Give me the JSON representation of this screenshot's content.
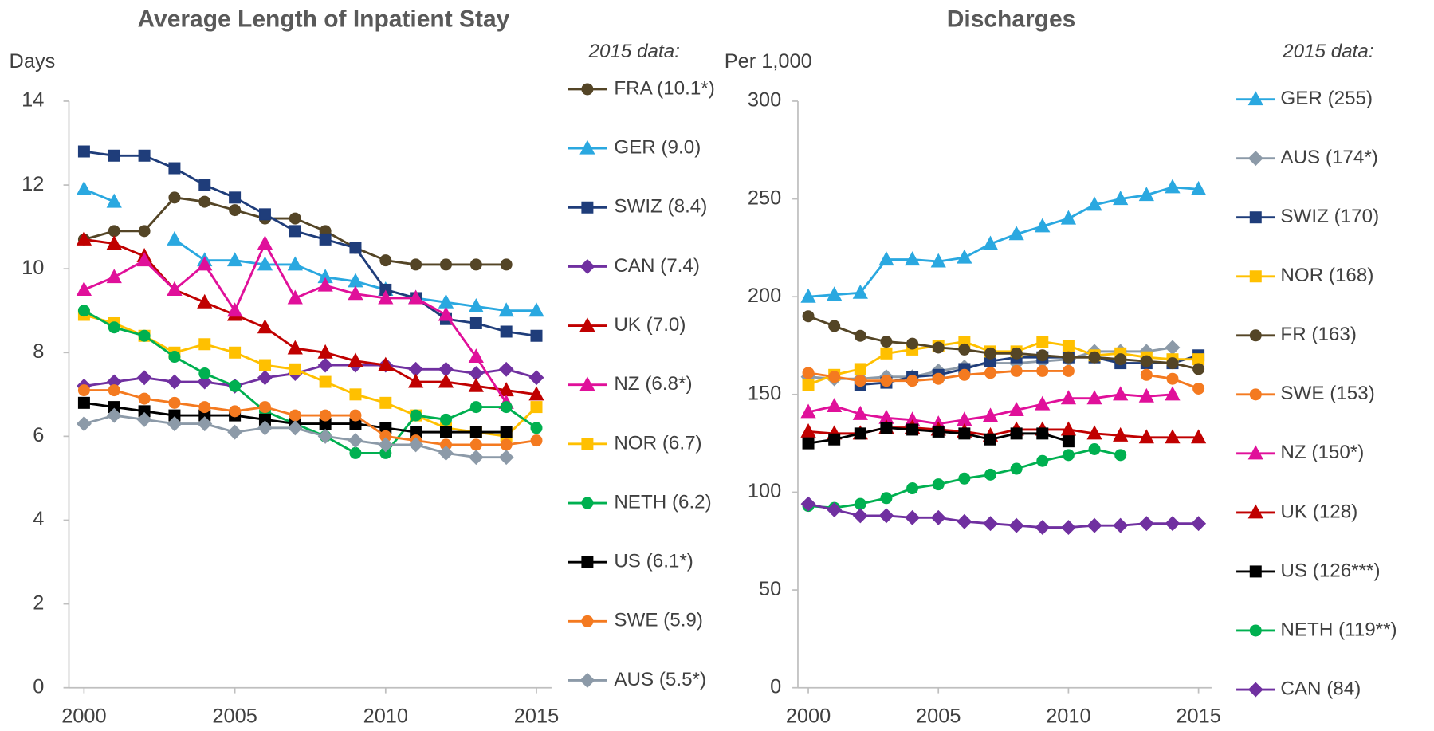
{
  "chart_data": [
    {
      "type": "line",
      "title": "Average Length of Inpatient Stay",
      "y_label": "Days",
      "legend_title": "2015 data:",
      "x": [
        2000,
        2001,
        2002,
        2003,
        2004,
        2005,
        2006,
        2007,
        2008,
        2009,
        2010,
        2011,
        2012,
        2013,
        2014,
        2015
      ],
      "xlim": [
        1999.5,
        2015.5
      ],
      "xticks": [
        2000,
        2005,
        2010,
        2015
      ],
      "ylim": [
        0,
        14
      ],
      "yticks": [
        0,
        2,
        4,
        6,
        8,
        10,
        12,
        14
      ],
      "grid": false,
      "series": [
        {
          "name": "FRA (10.1*)",
          "color": "#544526",
          "marker": "circle",
          "values": [
            10.7,
            10.9,
            10.9,
            11.7,
            11.6,
            11.4,
            11.2,
            11.2,
            10.9,
            10.5,
            10.2,
            10.1,
            10.1,
            10.1,
            10.1,
            null
          ]
        },
        {
          "name": "GER (9.0)",
          "color": "#2aa8e0",
          "marker": "triangle",
          "values": [
            11.9,
            11.6,
            null,
            10.7,
            10.2,
            10.2,
            10.1,
            10.1,
            9.8,
            9.7,
            9.5,
            9.3,
            9.2,
            9.1,
            9.0,
            9.0
          ]
        },
        {
          "name": "SWIZ (8.4)",
          "color": "#1f3d7a",
          "marker": "square",
          "values": [
            12.8,
            12.7,
            12.7,
            12.4,
            12.0,
            11.7,
            11.3,
            10.9,
            10.7,
            10.5,
            9.5,
            9.3,
            8.8,
            8.7,
            8.5,
            8.4
          ]
        },
        {
          "name": "CAN (7.4)",
          "color": "#7030a0",
          "marker": "diamond",
          "values": [
            7.2,
            7.3,
            7.4,
            7.3,
            7.3,
            7.2,
            7.4,
            7.5,
            7.7,
            7.7,
            7.7,
            7.6,
            7.6,
            7.5,
            7.6,
            7.4
          ]
        },
        {
          "name": "UK (7.0)",
          "color": "#c00000",
          "marker": "triangle",
          "values": [
            10.7,
            10.6,
            10.3,
            9.5,
            9.2,
            8.9,
            8.6,
            8.1,
            8.0,
            7.8,
            7.7,
            7.3,
            7.3,
            7.2,
            7.1,
            7.0
          ]
        },
        {
          "name": "NZ (6.8*)",
          "color": "#e0109a",
          "marker": "triangle",
          "values": [
            9.5,
            9.8,
            10.2,
            9.5,
            10.1,
            9.0,
            10.6,
            9.3,
            9.6,
            9.4,
            9.3,
            9.3,
            8.9,
            7.9,
            6.8,
            null
          ]
        },
        {
          "name": "NOR (6.7)",
          "color": "#ffc000",
          "marker": "square",
          "values": [
            8.9,
            8.7,
            8.4,
            8.0,
            8.2,
            8.0,
            7.7,
            7.6,
            7.3,
            7.0,
            6.8,
            6.5,
            6.2,
            6.1,
            6.0,
            6.7
          ]
        },
        {
          "name": "NETH (6.2)",
          "color": "#00b050",
          "marker": "circle",
          "values": [
            9.0,
            8.6,
            8.4,
            7.9,
            7.5,
            7.2,
            6.6,
            6.3,
            6.0,
            5.6,
            5.6,
            6.5,
            6.4,
            6.7,
            6.7,
            6.2
          ]
        },
        {
          "name": "US (6.1*)",
          "color": "#000000",
          "marker": "square",
          "values": [
            6.8,
            6.7,
            6.6,
            6.5,
            6.5,
            6.5,
            6.4,
            6.3,
            6.3,
            6.3,
            6.2,
            6.1,
            6.1,
            6.1,
            6.1,
            null
          ]
        },
        {
          "name": "SWE (5.9)",
          "color": "#f47a20",
          "marker": "circle",
          "values": [
            7.1,
            7.1,
            6.9,
            6.8,
            6.7,
            6.6,
            6.7,
            6.5,
            6.5,
            6.5,
            6.0,
            5.9,
            5.8,
            5.8,
            5.8,
            5.9
          ]
        },
        {
          "name": "AUS (5.5*)",
          "color": "#8c9aa8",
          "marker": "diamond",
          "values": [
            6.3,
            6.5,
            6.4,
            6.3,
            6.3,
            6.1,
            6.2,
            6.2,
            6.0,
            5.9,
            5.8,
            5.8,
            5.6,
            5.5,
            5.5,
            null
          ]
        }
      ]
    },
    {
      "type": "line",
      "title": "Discharges",
      "y_label": "Per 1,000",
      "legend_title": "2015 data:",
      "x": [
        2000,
        2001,
        2002,
        2003,
        2004,
        2005,
        2006,
        2007,
        2008,
        2009,
        2010,
        2011,
        2012,
        2013,
        2014,
        2015
      ],
      "xlim": [
        1999.6,
        2015.5
      ],
      "xticks": [
        2000,
        2005,
        2010,
        2015
      ],
      "ylim": [
        0,
        300
      ],
      "yticks": [
        0,
        50,
        100,
        150,
        200,
        250,
        300
      ],
      "grid": false,
      "series": [
        {
          "name": "GER (255)",
          "color": "#2aa8e0",
          "marker": "triangle",
          "values": [
            200,
            201,
            202,
            219,
            219,
            218,
            220,
            227,
            232,
            236,
            240,
            247,
            250,
            252,
            256,
            255
          ]
        },
        {
          "name": "AUS (174*)",
          "color": "#8c9aa8",
          "marker": "diamond",
          "values": [
            159,
            158,
            158,
            159,
            159,
            162,
            164,
            166,
            166,
            167,
            168,
            172,
            172,
            172,
            174,
            null
          ]
        },
        {
          "name": "SWIZ (170)",
          "color": "#1f3d7a",
          "marker": "square",
          "values": [
            null,
            null,
            155,
            156,
            159,
            160,
            163,
            167,
            169,
            169,
            169,
            169,
            166,
            166,
            166,
            170
          ]
        },
        {
          "name": "NOR (168)",
          "color": "#ffc000",
          "marker": "square",
          "values": [
            155,
            160,
            163,
            171,
            173,
            175,
            177,
            172,
            172,
            177,
            175,
            170,
            171,
            169,
            168,
            168
          ]
        },
        {
          "name": "FR (163)",
          "color": "#544526",
          "marker": "circle",
          "values": [
            190,
            185,
            180,
            177,
            176,
            174,
            173,
            171,
            171,
            170,
            169,
            169,
            168,
            167,
            166,
            163
          ]
        },
        {
          "name": "SWE (153)",
          "color": "#f47a20",
          "marker": "circle",
          "values": [
            161,
            159,
            157,
            157,
            157,
            158,
            160,
            161,
            162,
            162,
            162,
            null,
            null,
            160,
            158,
            153
          ]
        },
        {
          "name": "NZ (150*)",
          "color": "#e0109a",
          "marker": "triangle",
          "values": [
            141,
            144,
            140,
            138,
            137,
            135,
            137,
            139,
            142,
            145,
            148,
            148,
            150,
            149,
            150,
            null
          ]
        },
        {
          "name": "UK (128)",
          "color": "#c00000",
          "marker": "triangle",
          "values": [
            131,
            130,
            130,
            133,
            133,
            132,
            131,
            129,
            132,
            132,
            132,
            130,
            129,
            128,
            128,
            128
          ]
        },
        {
          "name": "US (126***)",
          "color": "#000000",
          "marker": "square",
          "values": [
            125,
            127,
            130,
            133,
            132,
            131,
            130,
            127,
            130,
            130,
            126,
            null,
            null,
            null,
            null,
            null
          ]
        },
        {
          "name": "NETH (119**)",
          "color": "#00b050",
          "marker": "circle",
          "values": [
            93,
            92,
            94,
            97,
            102,
            104,
            107,
            109,
            112,
            116,
            119,
            122,
            119,
            null,
            null,
            null
          ]
        },
        {
          "name": "CAN (84)",
          "color": "#7030a0",
          "marker": "diamond",
          "values": [
            94,
            91,
            88,
            88,
            87,
            87,
            85,
            84,
            83,
            82,
            82,
            83,
            83,
            84,
            84,
            84
          ]
        }
      ]
    }
  ]
}
